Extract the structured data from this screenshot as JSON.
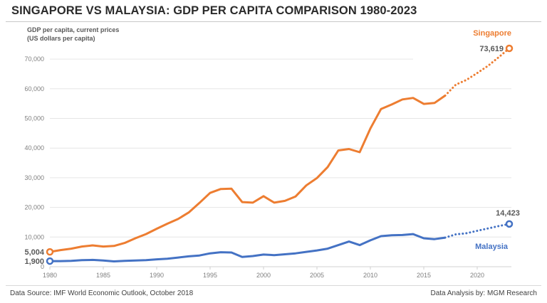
{
  "header": {
    "title": "SINGAPORE VS MALAYSIA: GDP PER CAPITA COMPARISON 1980-2023"
  },
  "footer": {
    "source": "Data Source: IMF World Economic Outlook, October 2018",
    "credit": "Data Analysis by: MGM Research"
  },
  "colors": {
    "singapore": "#ED7D31",
    "malaysia": "#4472C4",
    "grid": "#e6e6e6"
  },
  "chart_data": {
    "type": "line",
    "title": "SINGAPORE VS MALAYSIA: GDP PER CAPITA COMPARISON 1980-2023",
    "ylabel_lines": [
      "GDP per capita, current prices",
      "(US dollars per capita)"
    ],
    "xlabel": "",
    "xlim": [
      1980,
      2023
    ],
    "ylim": [
      0,
      70000
    ],
    "x_ticks": [
      1980,
      1985,
      1990,
      1995,
      2000,
      2005,
      2010,
      2015,
      2020
    ],
    "y_ticks": [
      0,
      10000,
      20000,
      30000,
      40000,
      50000,
      60000,
      70000
    ],
    "y_tick_labels": [
      "0",
      "10,000",
      "20,000",
      "30,000",
      "40,000",
      "50,000",
      "60,000",
      "70,000"
    ],
    "grid": true,
    "projection_start": 2017,
    "x": [
      1980,
      1981,
      1982,
      1983,
      1984,
      1985,
      1986,
      1987,
      1988,
      1989,
      1990,
      1991,
      1992,
      1993,
      1994,
      1995,
      1996,
      1997,
      1998,
      1999,
      2000,
      2001,
      2002,
      2003,
      2004,
      2005,
      2006,
      2007,
      2008,
      2009,
      2010,
      2011,
      2012,
      2013,
      2014,
      2015,
      2016,
      2017,
      2018,
      2019,
      2020,
      2021,
      2022,
      2023
    ],
    "series": [
      {
        "name": "Singapore",
        "start_label": "5,004",
        "end_label": "73,619",
        "values": [
          5004,
          5600,
          6100,
          6800,
          7200,
          6800,
          7000,
          8000,
          9600,
          11000,
          12800,
          14500,
          16100,
          18300,
          21500,
          24900,
          26200,
          26300,
          21800,
          21600,
          23800,
          21600,
          22200,
          23700,
          27400,
          29900,
          33600,
          39200,
          39700,
          38600,
          46600,
          53200,
          54700,
          56400,
          56900,
          54900,
          55200,
          57700,
          61400,
          63000,
          65300,
          67700,
          70600,
          73619
        ]
      },
      {
        "name": "Malaysia",
        "start_label": "1,900",
        "end_label": "14,423",
        "values": [
          1900,
          1900,
          2000,
          2200,
          2300,
          2100,
          1800,
          2000,
          2100,
          2200,
          2500,
          2700,
          3100,
          3500,
          3800,
          4500,
          4900,
          4800,
          3300,
          3600,
          4100,
          3900,
          4200,
          4500,
          5000,
          5500,
          6100,
          7300,
          8500,
          7300,
          8900,
          10300,
          10600,
          10700,
          11000,
          9600,
          9300,
          9800,
          10900,
          11300,
          12100,
          12900,
          13700,
          14423
        ]
      }
    ],
    "legend": "inline-labels-right"
  }
}
